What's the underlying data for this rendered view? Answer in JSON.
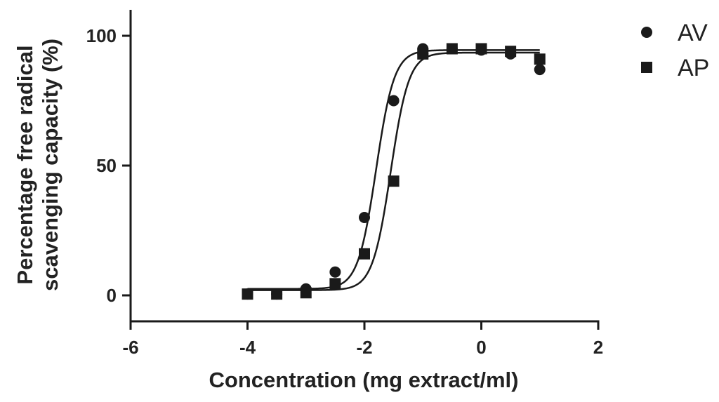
{
  "chart_data": {
    "type": "scatter",
    "title": "",
    "xlabel": "Concentration (mg extract/ml)",
    "ylabel_lines": [
      "Percentage free radical",
      "scavenging capacity (%)"
    ],
    "xlim": [
      -6,
      2
    ],
    "ylim": [
      -10,
      110
    ],
    "xticks": [
      -6,
      -4,
      -2,
      0,
      2
    ],
    "yticks": [
      0,
      50,
      100
    ],
    "xtick_labels": [
      "-6",
      "-4",
      "-2",
      "0",
      "2"
    ],
    "ytick_labels": [
      "0",
      "50",
      "100"
    ],
    "grid": false,
    "legend_position": "top-right",
    "series": [
      {
        "name": "AV",
        "marker": "circle",
        "color": "#1a1a1a",
        "x": [
          -4,
          -3.5,
          -3,
          -2.5,
          -2,
          -1.5,
          -1,
          -1,
          -0.5,
          0,
          0.5,
          1
        ],
        "y": [
          0.5,
          0.5,
          2.5,
          9,
          30,
          75,
          95,
          93,
          95,
          94.5,
          93,
          87
        ],
        "fit": {
          "bottom": 2.5,
          "top": 94.5,
          "logEC50": -1.8,
          "hill": 2.8
        }
      },
      {
        "name": "AP",
        "marker": "square",
        "color": "#1a1a1a",
        "x": [
          -4,
          -3.5,
          -3,
          -2.5,
          -2,
          -1.5,
          -1,
          -0.5,
          0,
          0.5,
          1
        ],
        "y": [
          0.5,
          0.5,
          1,
          4.5,
          16,
          44,
          93,
          95,
          95,
          94,
          91
        ],
        "fit": {
          "bottom": 2.0,
          "top": 93.5,
          "logEC50": -1.55,
          "hill": 2.8
        }
      }
    ]
  }
}
